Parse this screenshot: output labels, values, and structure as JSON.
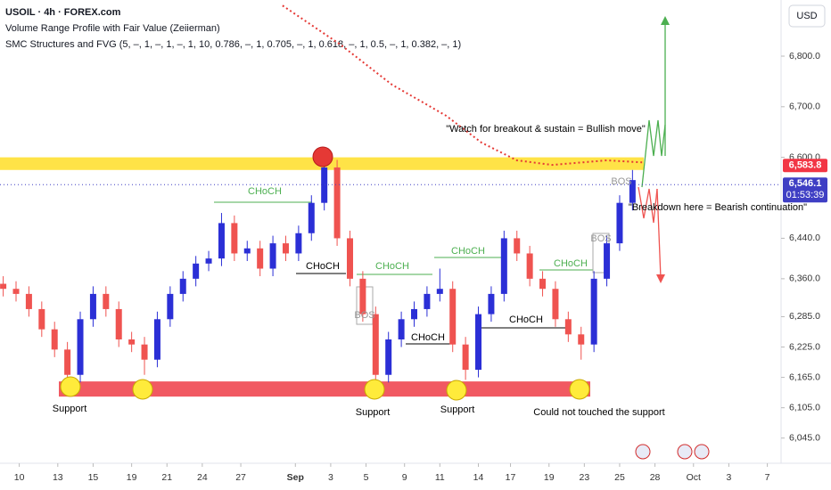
{
  "chart_data": {
    "type": "candlestick",
    "title": "USOIL · 4h · FOREX.com",
    "subtitles": [
      "Volume Range Profile with Fair Value (Zeiierman)",
      "SMC Structures and FVG (5, –, 1, –, 1, –, 1, 10, 0.786, –, 1, 0.705, –, 1, 0.618, –, 1, 0.5, –, 1, 0.382, –, 1)"
    ],
    "currency": "USD",
    "up_color": "#2b2fd6",
    "down_color": "#ef5350",
    "x": [
      1,
      5,
      9,
      13,
      17,
      21,
      25,
      29,
      33,
      37,
      41,
      45,
      49,
      53,
      57,
      61,
      65,
      69,
      73,
      77,
      81,
      85,
      89,
      93,
      97,
      101,
      105,
      109,
      113,
      117,
      121,
      125,
      129,
      133,
      137,
      141,
      145,
      149,
      153,
      157,
      161,
      165,
      169,
      173,
      177,
      181,
      185,
      189,
      193,
      197
    ],
    "open": [
      6350,
      6340,
      6330,
      6300,
      6260,
      6220,
      6170,
      6280,
      6330,
      6300,
      6240,
      6230,
      6200,
      6280,
      6330,
      6360,
      6390,
      6400,
      6470,
      6410,
      6420,
      6380,
      6430,
      6410,
      6450,
      6510,
      6580,
      6440,
      6360,
      6290,
      6170,
      6240,
      6280,
      6300,
      6330,
      6340,
      6230,
      6180,
      6290,
      6330,
      6440,
      6410,
      6360,
      6340,
      6280,
      6250,
      6230,
      6360,
      6430,
      6510
    ],
    "high": [
      6365,
      6355,
      6345,
      6315,
      6275,
      6235,
      6295,
      6345,
      6345,
      6315,
      6255,
      6245,
      6295,
      6345,
      6375,
      6405,
      6415,
      6490,
      6485,
      6435,
      6435,
      6445,
      6445,
      6465,
      6525,
      6610,
      6595,
      6455,
      6375,
      6305,
      6255,
      6295,
      6315,
      6345,
      6380,
      6355,
      6245,
      6305,
      6345,
      6455,
      6455,
      6425,
      6375,
      6355,
      6295,
      6265,
      6375,
      6445,
      6525,
      6575
    ],
    "low": [
      6325,
      6315,
      6285,
      6245,
      6205,
      6150,
      6155,
      6265,
      6285,
      6225,
      6215,
      6170,
      6185,
      6265,
      6315,
      6345,
      6375,
      6385,
      6395,
      6395,
      6365,
      6365,
      6395,
      6395,
      6435,
      6495,
      6425,
      6345,
      6275,
      6145,
      6155,
      6225,
      6265,
      6285,
      6315,
      6215,
      6160,
      6165,
      6275,
      6315,
      6395,
      6345,
      6325,
      6265,
      6235,
      6200,
      6215,
      6345,
      6415,
      6495
    ],
    "close": [
      6340,
      6330,
      6300,
      6260,
      6220,
      6170,
      6280,
      6330,
      6300,
      6240,
      6230,
      6200,
      6280,
      6330,
      6360,
      6390,
      6400,
      6470,
      6410,
      6420,
      6380,
      6430,
      6410,
      6450,
      6510,
      6580,
      6440,
      6360,
      6290,
      6170,
      6240,
      6280,
      6300,
      6330,
      6340,
      6230,
      6180,
      6290,
      6330,
      6440,
      6410,
      6360,
      6340,
      6280,
      6250,
      6230,
      6360,
      6430,
      6510,
      6555
    ],
    "fair_value": {
      "color": "#e53935",
      "x": [
        88,
        106,
        122,
        139,
        150,
        161,
        172,
        189,
        200
      ],
      "values": [
        6900,
        6823,
        6744,
        6682,
        6629,
        6594,
        6585,
        6594,
        6590
      ]
    },
    "resistance_zone": {
      "color": "#ffe033",
      "range": [
        6575,
        6600
      ]
    },
    "support_zone": {
      "color": "#f0505a",
      "range": [
        6127,
        6157
      ]
    },
    "xlim": [
      0,
      243
    ],
    "ylim": [
      6004,
      6911
    ],
    "xticks": [
      {
        "value": 6,
        "label": "10"
      },
      {
        "value": 18,
        "label": "13"
      },
      {
        "value": 29,
        "label": "15"
      },
      {
        "value": 41,
        "label": "19"
      },
      {
        "value": 52,
        "label": "21"
      },
      {
        "value": 63,
        "label": "24"
      },
      {
        "value": 75,
        "label": "27"
      },
      {
        "value": 92,
        "label": "Sep"
      },
      {
        "value": 103,
        "label": "3"
      },
      {
        "value": 114,
        "label": "5"
      },
      {
        "value": 126,
        "label": "9"
      },
      {
        "value": 137,
        "label": "11"
      },
      {
        "value": 149,
        "label": "14"
      },
      {
        "value": 159,
        "label": "17"
      },
      {
        "value": 171,
        "label": "19"
      },
      {
        "value": 182,
        "label": "23"
      },
      {
        "value": 193,
        "label": "25"
      },
      {
        "value": 204,
        "label": "28"
      },
      {
        "value": 216,
        "label": "Oct"
      },
      {
        "value": 227,
        "label": "3"
      },
      {
        "value": 239,
        "label": "7"
      }
    ],
    "yticks": [
      {
        "value": 6045,
        "label": "6,045.0"
      },
      {
        "value": 6105,
        "label": "6,105.0"
      },
      {
        "value": 6165,
        "label": "6,165.0"
      },
      {
        "value": 6225,
        "label": "6,225.0"
      },
      {
        "value": 6285,
        "label": "6,285.0"
      },
      {
        "value": 6360,
        "label": "6,360.0"
      },
      {
        "value": 6440,
        "label": "6,440.0"
      },
      {
        "value": 6600,
        "label": "6,600.0"
      },
      {
        "value": 6700,
        "label": "6,700.0"
      },
      {
        "value": 6800,
        "label": "6,800.0"
      }
    ],
    "price_labels": [
      {
        "value": 6583.8,
        "label": "6,583.8",
        "color": "#f23645"
      },
      {
        "value": 6546.1,
        "label": "6,546.1",
        "color": "#3f3fc4"
      }
    ],
    "countdown": "01:53:39",
    "annotations": [
      "CHoCH",
      "CHoCH",
      "CHoCH",
      "CHoCH",
      "CHoCH",
      "CHoCH",
      "CHoCH",
      "BOS",
      "BOS",
      "BOS",
      "Support",
      "Support",
      "Support",
      "Could not touched the support",
      "\"Watch for breakout & sustain = Bullish move\"",
      "\"Breakdown here = Bearish continuation\""
    ]
  }
}
